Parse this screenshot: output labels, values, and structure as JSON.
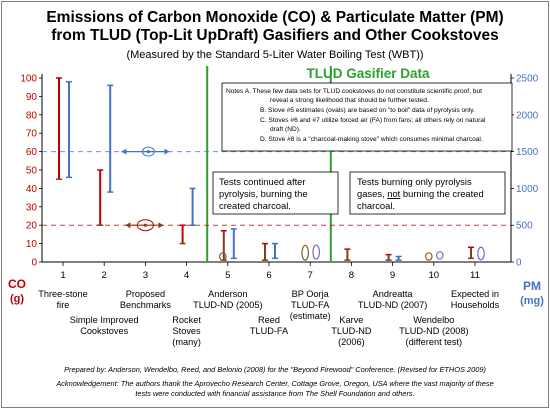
{
  "chart_data": {
    "type": "range",
    "title_line1": "Emissions of Carbon Monoxide (CO) & Particulate Matter (PM)",
    "title_line2": "from TLUD (Top-Lit UpDraft) Gasifiers and Other Cookstoves",
    "subtitle": "(Measured by the Standard 5-Liter Water Boiling Test (WBT))",
    "section_title": "TLUD Gasifier Data",
    "y_left": {
      "label": "CO",
      "unit": "(g)",
      "min": 0,
      "max": 100,
      "ticks": [
        0,
        10,
        20,
        30,
        40,
        50,
        60,
        70,
        80,
        90,
        100
      ],
      "color": "#c00000"
    },
    "y_right": {
      "label": "PM",
      "unit": "(mg)",
      "min": 0,
      "max": 2500,
      "ticks": [
        0,
        500,
        1000,
        1500,
        2000,
        2500
      ],
      "color": "#4472c4"
    },
    "categories": [
      "1",
      "2",
      "3",
      "4",
      "5",
      "6",
      "7",
      "8",
      "9",
      "10",
      "11"
    ],
    "category_labels": [
      {
        "cat": 1,
        "lines": [
          "Three-stone",
          "fire"
        ],
        "row": 0
      },
      {
        "cat": 2,
        "lines": [
          "Simple Improved",
          "Cookstoves"
        ],
        "row": 1
      },
      {
        "cat": 3,
        "lines": [
          "Proposed",
          "Benchmarks"
        ],
        "row": 0
      },
      {
        "cat": 4,
        "lines": [
          "Rocket",
          "Stoves",
          "(many)"
        ],
        "row": 1
      },
      {
        "cat": 5,
        "lines": [
          "Anderson",
          "TLUD-ND (2005)"
        ],
        "row": 0
      },
      {
        "cat": 6,
        "lines": [
          "Reed",
          "TLUD-FA"
        ],
        "row": 1
      },
      {
        "cat": 7,
        "lines": [
          "BP Oorja",
          "TLUD-FA",
          "(estimate)"
        ],
        "row": 0
      },
      {
        "cat": 8,
        "lines": [
          "Karve",
          "TLUD-ND",
          "(2006)"
        ],
        "row": 1
      },
      {
        "cat": 9,
        "lines": [
          "Andreatta",
          "TLUD-ND (2007)"
        ],
        "row": 0
      },
      {
        "cat": 10,
        "lines": [
          "Wendelbo",
          "TLUD-ND (2008)",
          "(different test)"
        ],
        "row": 1
      },
      {
        "cat": 11,
        "lines": [
          "Expected in",
          "Households"
        ],
        "row": 0
      }
    ],
    "co_ranges": [
      {
        "cat": 1,
        "low": 45,
        "high": 100
      },
      {
        "cat": 2,
        "low": 20,
        "high": 50
      },
      {
        "cat": 4,
        "low": 10,
        "high": 20
      },
      {
        "cat": 5,
        "low": 1,
        "high": 17
      },
      {
        "cat": 6,
        "low": 1,
        "high": 10
      },
      {
        "cat": 8,
        "low": 1,
        "high": 7
      },
      {
        "cat": 9,
        "low": 1,
        "high": 4
      },
      {
        "cat": 11,
        "low": 2,
        "high": 8
      }
    ],
    "pm_ranges": [
      {
        "cat": 1,
        "low": 1150,
        "high": 2450
      },
      {
        "cat": 2,
        "low": 950,
        "high": 2400
      },
      {
        "cat": 4,
        "low": 500,
        "high": 1000
      },
      {
        "cat": 5,
        "low": 50,
        "high": 450
      },
      {
        "cat": 6,
        "low": 50,
        "high": 250
      },
      {
        "cat": 9,
        "low": 25,
        "high": 75
      }
    ],
    "estimates": [
      {
        "cat": 5,
        "series": "CO",
        "low": 1,
        "high": 5
      },
      {
        "cat": 7,
        "series": "CO",
        "low": 1,
        "high": 9
      },
      {
        "cat": 7,
        "series": "PM",
        "low": 40,
        "high": 230
      },
      {
        "cat": 10,
        "series": "CO",
        "low": 1,
        "high": 5
      },
      {
        "cat": 10,
        "series": "PM",
        "low": 40,
        "high": 140
      },
      {
        "cat": 11,
        "series": "PM",
        "low": 30,
        "high": 200
      }
    ],
    "benchmarks": [
      {
        "series": "CO",
        "value": 20,
        "color": "#c00000"
      },
      {
        "series": "PM",
        "value": 1500,
        "color": "#4472c4"
      }
    ],
    "separators_after": [
      4,
      7
    ],
    "notes": [
      "Notes  A. These few data sets for TLUD cookstoves do not constitute scientific proof, but",
      "reveal a strong likelihood that should be further tested.",
      "B. Stove #5 estimates (ovals) are based on \"to boil\" data of pyrolysis only.",
      "C. Stoves #6 and #7 utilize forced air (FA) from fans; all others rely on natural",
      "draft (ND).",
      "D. Stove #8 is a \"charcoal-making stove\" which consumes minimal charcoal."
    ],
    "box_left": [
      "Tests continued after",
      "pyrolysis, burning the",
      "created charcoal."
    ],
    "box_right_1": "Tests burning only pyrolysis",
    "box_right_2_pre": "gases, ",
    "box_right_2_not": "not",
    "box_right_2_post": " burning the created",
    "box_right_3": "charcoal.",
    "footer_1": "Prepared by: Anderson, Wendelbo, Reed, and Belonio (2008) for the \"Beyond Firewood\" Conference.  (Revised for ETHOS 2009)",
    "footer_2": "Acknowledgement: The authors thank the Aprovecho Research Center, Cottage Grove, Oregon, USA where the vast majority of these",
    "footer_3": "tests were conducted with financial assistance from The Shell Foundation and others."
  }
}
